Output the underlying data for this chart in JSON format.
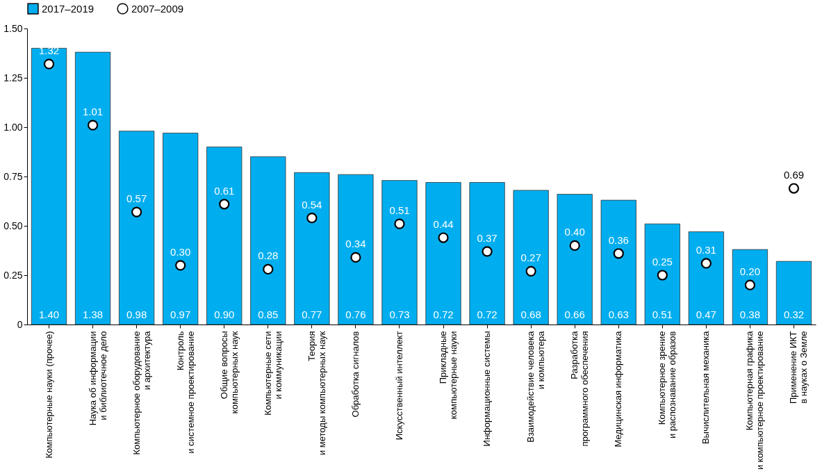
{
  "chart_data": {
    "type": "bar",
    "categories": [
      "Компьютерные науки (прочее)",
      "Наука об информации\nи библиотечное дело",
      "Компьютерное оборудование\nи архитектура",
      "Контроль\nи системное проектирование",
      "Общие вопросы\nкомпьютерных наук",
      "Компьютерные сети\nи коммуникации",
      "Теория\nи методы компьютерных наук",
      "Обработка сигналов",
      "Искусственный интеллект",
      "Прикладные\nкомпьютерные науки",
      "Информационные системы",
      "Взаимодействие человека\nи компьютера",
      "Разработка\nпрограммного обеспечения",
      "Медицинская информатика",
      "Компьютерное зрение\nи распознавание образов",
      "Вычислительная механика",
      "Компьютерная графика\nи компьютерное проектирование",
      "Применение ИКТ\nв науках о Земле"
    ],
    "series": [
      {
        "name": "2017–2019",
        "color": "#00aeef",
        "values": [
          1.4,
          1.38,
          0.98,
          0.97,
          0.9,
          0.85,
          0.77,
          0.76,
          0.73,
          0.72,
          0.72,
          0.68,
          0.66,
          0.63,
          0.51,
          0.47,
          0.38,
          0.32
        ],
        "value_labels": [
          "1.40",
          "1.38",
          "0.98",
          "0.97",
          "0.90",
          "0.85",
          "0.77",
          "0.76",
          "0.73",
          "0.72",
          "0.72",
          "0.68",
          "0.66",
          "0.63",
          "0.51",
          "0.47",
          "0.38",
          "0.32"
        ]
      },
      {
        "name": "2007–2009",
        "type": "scatter",
        "color": "#ffffff",
        "values": [
          1.32,
          1.01,
          0.57,
          0.3,
          0.61,
          0.28,
          0.54,
          0.34,
          0.51,
          0.44,
          0.37,
          0.27,
          0.4,
          0.36,
          0.25,
          0.31,
          0.2,
          0.69
        ],
        "value_labels": [
          "1.32",
          "1.01",
          "0.57",
          "0.30",
          "0.61",
          "0.28",
          "0.54",
          "0.34",
          "0.51",
          "0.44",
          "0.37",
          "0.27",
          "0.40",
          "0.36",
          "0.25",
          "0.31",
          "0.20",
          "0.69"
        ]
      }
    ],
    "ylim": [
      0,
      1.5
    ],
    "yticks": [
      0,
      0.25,
      {
        "value": 0.5,
        "label": "0.50"
      },
      0.75,
      {
        "value": 1,
        "label": "1.00"
      },
      1.25,
      {
        "value": 1.5,
        "label": "1.50"
      }
    ],
    "marker": "circle",
    "grid": false,
    "legend": "top"
  }
}
